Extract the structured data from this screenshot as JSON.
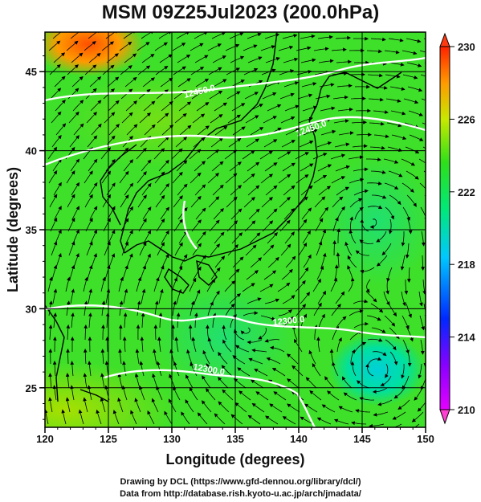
{
  "title": "MSM 09Z25Jul2023 (200.0hPa)",
  "footer": {
    "line1": "Drawing by DCL (https://www.gfd-dennou.org/library/dcl/)",
    "line2": "Data from http://database.rish.kyoto-u.ac.jp/arch/jmadata/"
  },
  "map": {
    "xlabel": "Longitude (degrees)",
    "ylabel": "Latitude  (degrees)",
    "lon_range": [
      120,
      150
    ],
    "lat_range": [
      22.5,
      47.5
    ],
    "lon_ticks": [
      "120",
      "125",
      "130",
      "135",
      "140",
      "145",
      "150"
    ],
    "lat_ticks": [
      "25",
      "30",
      "35",
      "40",
      "45"
    ],
    "contour_labels": [
      "12450.0",
      "12450.0",
      "12300.0",
      "12300.0"
    ]
  },
  "colorbar": {
    "ticks": [
      "230",
      "226",
      "222",
      "218",
      "214",
      "210"
    ]
  },
  "colors": {
    "background_field": "#3ee02a",
    "contour": "#ffffff",
    "vector": "#000000",
    "coast": "#000000"
  }
}
